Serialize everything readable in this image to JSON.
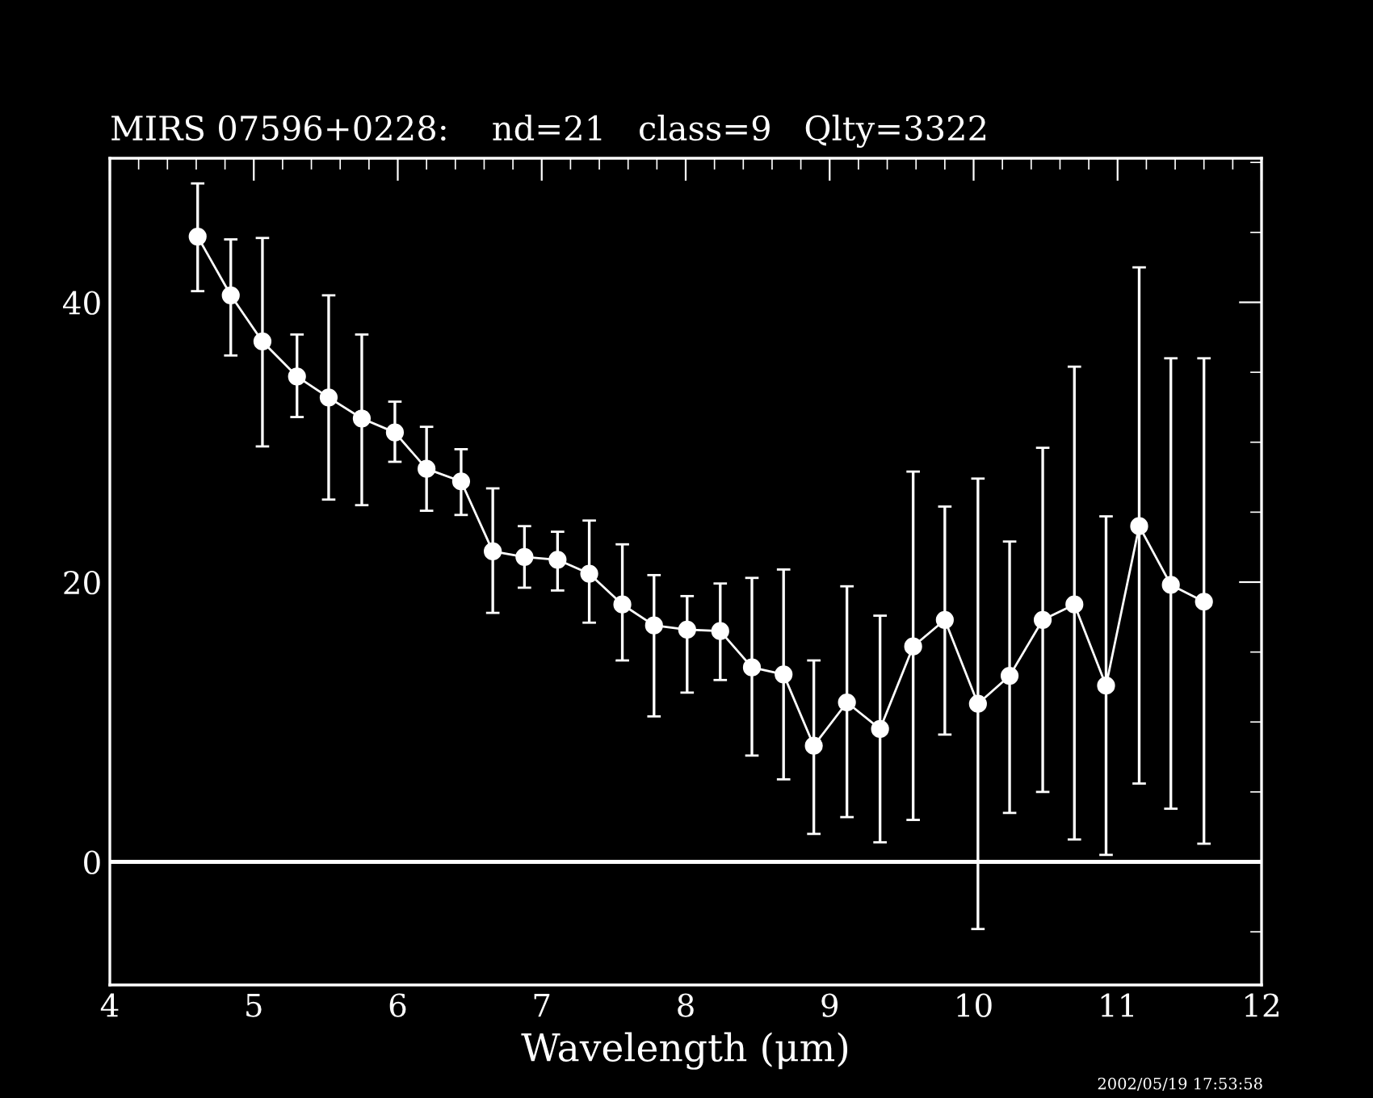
{
  "chart_data": {
    "type": "line",
    "title": "MIRS 07596+0228:    nd=21   class=9   Qlty=3322",
    "xlabel": "Wavelength (μm)",
    "x": [
      4.61,
      4.84,
      5.06,
      5.3,
      5.52,
      5.75,
      5.98,
      6.2,
      6.44,
      6.66,
      6.88,
      7.11,
      7.33,
      7.56,
      7.78,
      8.01,
      8.24,
      8.46,
      8.68,
      8.89,
      9.12,
      9.35,
      9.58,
      9.8,
      10.03,
      10.25,
      10.48,
      10.7,
      10.92,
      11.15,
      11.37,
      11.6
    ],
    "series": [
      {
        "color": "#ffffff",
        "values": [
          44.7,
          40.5,
          37.2,
          34.7,
          33.2,
          31.7,
          30.7,
          28.1,
          27.2,
          22.2,
          21.8,
          21.6,
          20.6,
          18.4,
          16.9,
          16.6,
          16.5,
          13.9,
          13.4,
          8.3,
          11.4,
          9.5,
          15.4,
          17.3,
          11.3,
          13.3,
          17.3,
          18.4,
          12.6,
          24.0,
          19.8,
          18.6
        ],
        "errors": [
          [
            40.8,
            48.5
          ],
          [
            36.2,
            44.5
          ],
          [
            29.7,
            44.6
          ],
          [
            31.8,
            37.7
          ],
          [
            25.9,
            40.5
          ],
          [
            25.5,
            37.7
          ],
          [
            28.6,
            32.9
          ],
          [
            25.1,
            31.1
          ],
          [
            24.8,
            29.5
          ],
          [
            17.8,
            26.7
          ],
          [
            19.6,
            24.0
          ],
          [
            19.4,
            23.6
          ],
          [
            17.1,
            24.4
          ],
          [
            14.4,
            22.7
          ],
          [
            10.4,
            20.5
          ],
          [
            12.1,
            19.0
          ],
          [
            13.0,
            19.9
          ],
          [
            7.6,
            20.3
          ],
          [
            5.9,
            20.9
          ],
          [
            2.0,
            14.4
          ],
          [
            3.2,
            19.7
          ],
          [
            1.4,
            17.6
          ],
          [
            3.0,
            27.9
          ],
          [
            9.1,
            25.4
          ],
          [
            -4.8,
            27.4
          ],
          [
            3.5,
            22.9
          ],
          [
            5.0,
            29.6
          ],
          [
            1.6,
            35.4
          ],
          [
            0.5,
            24.7
          ],
          [
            5.6,
            42.5
          ],
          [
            3.8,
            36.0
          ],
          [
            1.3,
            36.0
          ]
        ]
      }
    ],
    "xlim": [
      4,
      12
    ],
    "ylim": [
      -8.8,
      50.3
    ],
    "xticks": [
      4,
      5,
      6,
      7,
      8,
      9,
      10,
      11,
      12
    ],
    "yticks": [
      0,
      20,
      40
    ],
    "ref_lines": [
      {
        "axis": "y",
        "value": 0,
        "color": "#ffffff"
      }
    ],
    "marker": "circle",
    "line_style": "solid",
    "grid": false,
    "legend": false,
    "annotations": [
      "2002/05/19 17:53:58"
    ]
  }
}
